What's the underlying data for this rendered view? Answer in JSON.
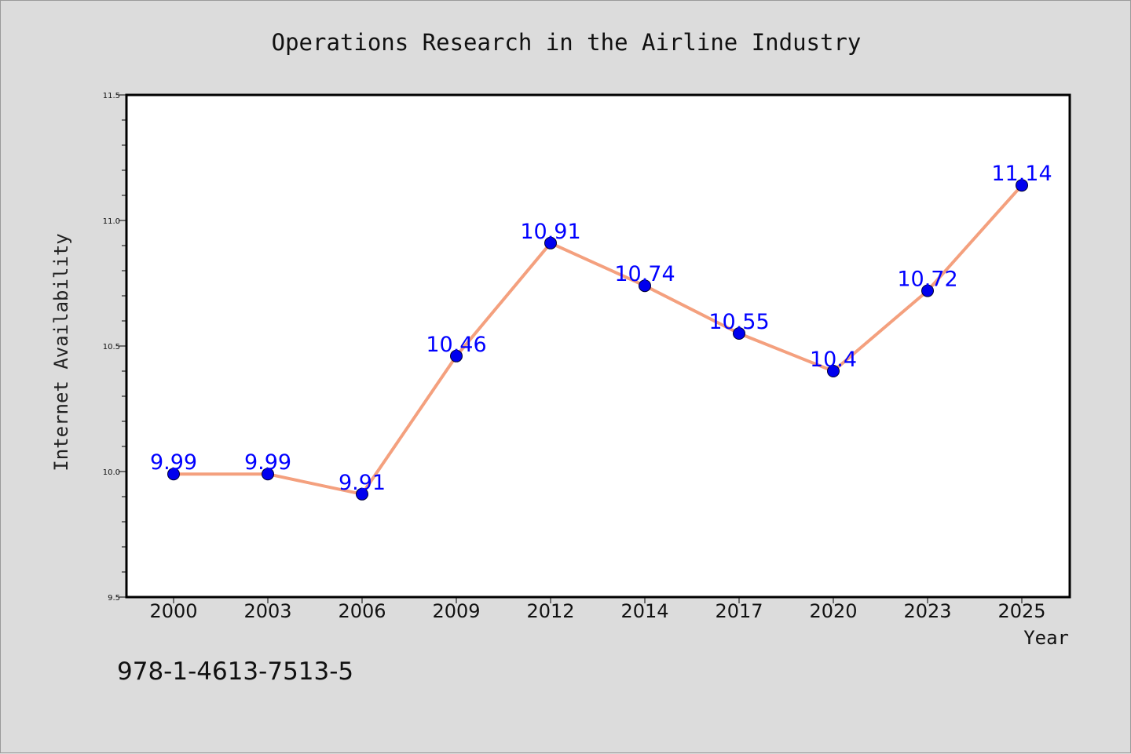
{
  "chart_data": {
    "type": "line",
    "title": "Operations Research in the Airline Industry",
    "xlabel": "Year",
    "ylabel": "Internet Availability",
    "categories": [
      "2000",
      "2003",
      "2006",
      "2009",
      "2012",
      "2014",
      "2017",
      "2020",
      "2023",
      "2025"
    ],
    "series": [
      {
        "values": [
          9.99,
          9.99,
          9.91,
          10.46,
          10.91,
          10.74,
          10.55,
          10.4,
          10.72,
          11.14
        ],
        "data_labels": [
          "9.99",
          "9.99",
          "9.91",
          "10.46",
          "10.91",
          "10.74",
          "10.55",
          "10.4",
          "10.72",
          "11.14"
        ]
      }
    ],
    "ylim": [
      9.5,
      11.5
    ],
    "yticks": [
      "9.5",
      "10.0",
      "10.5",
      "11.0",
      "11.5"
    ],
    "grid": false,
    "line_color": "#f4a07e",
    "marker_color": "#0000ee",
    "label_color": "#0000ff"
  },
  "annotation": "978-1-4613-7513-5"
}
